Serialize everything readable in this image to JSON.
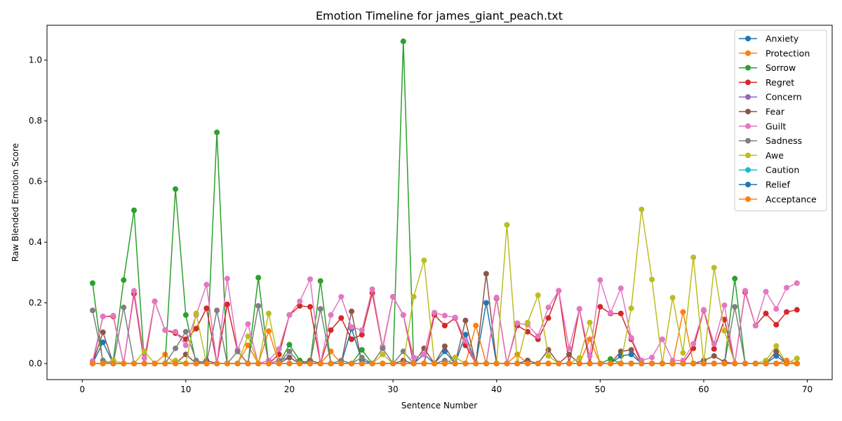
{
  "chart_data": {
    "type": "line",
    "title": "Emotion Timeline for james_giant_peach.txt",
    "xlabel": "Sentence Number",
    "ylabel": "Raw Blended Emotion Score",
    "xlim": [
      -3.4,
      72.4
    ],
    "ylim": [
      -0.053,
      1.115
    ],
    "xticks": [
      0,
      10,
      20,
      30,
      40,
      50,
      60,
      70
    ],
    "yticks": [
      0.0,
      0.2,
      0.4,
      0.6,
      0.8,
      1.0
    ],
    "ytick_labels": [
      "0.0",
      "0.2",
      "0.4",
      "0.6",
      "0.8",
      "1.0"
    ],
    "grid": false,
    "legend_position": "top-right",
    "x": [
      1,
      2,
      3,
      4,
      5,
      6,
      7,
      8,
      9,
      10,
      11,
      12,
      13,
      14,
      15,
      16,
      17,
      18,
      19,
      20,
      21,
      22,
      23,
      24,
      25,
      26,
      27,
      28,
      29,
      30,
      31,
      32,
      33,
      34,
      35,
      36,
      37,
      38,
      39,
      40,
      41,
      42,
      43,
      44,
      45,
      46,
      47,
      48,
      49,
      50,
      51,
      52,
      53,
      54,
      55,
      56,
      57,
      58,
      59,
      60,
      61,
      62,
      63,
      64,
      65,
      66,
      67,
      68,
      69
    ],
    "series": [
      {
        "name": "Anxiety",
        "color": "#1f77b4",
        "values": [
          0,
          0.07,
          0,
          0,
          0,
          0,
          0,
          0,
          0,
          0,
          0,
          0,
          0,
          0,
          0,
          0,
          0,
          0,
          0,
          0,
          0,
          0,
          0,
          0,
          0,
          0.115,
          0.01,
          0,
          0,
          0,
          0,
          0,
          0.03,
          0,
          0.04,
          0,
          0.095,
          0,
          0.2,
          0,
          0,
          0,
          0,
          0,
          0,
          0,
          0,
          0,
          0,
          0,
          0,
          0.025,
          0.03,
          0,
          0,
          0,
          0,
          0,
          0,
          0,
          0,
          0,
          0,
          0,
          0,
          0,
          0.025,
          0,
          0
        ]
      },
      {
        "name": "Protection",
        "color": "#ff7f0e",
        "values": [
          0,
          0,
          0,
          0,
          0,
          0,
          0,
          0.03,
          0,
          0,
          0,
          0,
          0,
          0,
          0,
          0.06,
          0,
          0.107,
          0,
          0,
          0,
          0,
          0,
          0.04,
          0,
          0,
          0,
          0,
          0,
          0,
          0,
          0,
          0,
          0,
          0,
          0,
          0,
          0.125,
          0,
          0,
          0,
          0.03,
          0,
          0,
          0,
          0,
          0,
          0,
          0.08,
          0,
          0,
          0,
          0,
          0,
          0,
          0,
          0,
          0.17,
          0,
          0,
          0,
          0,
          0,
          0,
          0,
          0,
          0,
          0.01,
          0
        ]
      },
      {
        "name": "Sorrow",
        "color": "#2ca02c",
        "values": [
          0.265,
          0,
          0.01,
          0.275,
          0.505,
          0,
          0,
          0,
          0.575,
          0.16,
          0,
          0,
          0.762,
          0,
          0,
          0,
          0.283,
          0,
          0,
          0.062,
          0.01,
          0,
          0.272,
          0,
          0,
          0,
          0.045,
          0,
          0,
          0,
          1.062,
          0,
          0,
          0,
          0,
          0,
          0,
          0,
          0,
          0,
          0,
          0,
          0,
          0,
          0,
          0,
          0,
          0,
          0,
          0,
          0.015,
          0,
          0,
          0,
          0,
          0,
          0,
          0,
          0,
          0,
          0,
          0,
          0.28,
          0,
          0,
          0,
          0,
          0,
          0
        ]
      },
      {
        "name": "Regret",
        "color": "#d62728",
        "values": [
          0,
          0.155,
          0.155,
          0,
          0.23,
          0,
          0.205,
          0.11,
          0.1,
          0.08,
          0.115,
          0.182,
          0,
          0.195,
          0.04,
          0,
          0,
          0,
          0.03,
          0.16,
          0.19,
          0.187,
          0,
          0.11,
          0.15,
          0.08,
          0.095,
          0.232,
          0.05,
          0.22,
          0.16,
          0,
          0,
          0.16,
          0.125,
          0.15,
          0.06,
          0,
          0,
          0.215,
          0,
          0.125,
          0.105,
          0.08,
          0.15,
          0.24,
          0,
          0.18,
          0,
          0.187,
          0.165,
          0.165,
          0.08,
          0,
          0,
          0,
          0,
          0,
          0.05,
          0.175,
          0.048,
          0.145,
          0,
          0.235,
          0.125,
          0.165,
          0.128,
          0.17,
          0.177
        ]
      },
      {
        "name": "Concern",
        "color": "#9467bd",
        "values": [
          0,
          0,
          0,
          0,
          0,
          0,
          0,
          0,
          0,
          0,
          0,
          0,
          0,
          0,
          0,
          0,
          0,
          0,
          0.01,
          0.02,
          0,
          0,
          0,
          0,
          0,
          0,
          0,
          0,
          0,
          0,
          0,
          0,
          0,
          0,
          0,
          0,
          0,
          0,
          0,
          0,
          0,
          0,
          0,
          0,
          0,
          0,
          0,
          0,
          0,
          0,
          0,
          0,
          0,
          0,
          0,
          0,
          0,
          0,
          0,
          0,
          0,
          0,
          0,
          0,
          0,
          0,
          0,
          0,
          0
        ]
      },
      {
        "name": "Fear",
        "color": "#8c564b",
        "values": [
          0,
          0.103,
          0,
          0,
          0,
          0,
          0,
          0,
          0,
          0.03,
          0,
          0.01,
          0,
          0,
          0,
          0,
          0,
          0,
          0,
          0.02,
          0,
          0.01,
          0,
          0,
          0,
          0.172,
          0,
          0,
          0,
          0,
          0.01,
          0,
          0.05,
          0,
          0.057,
          0,
          0.142,
          0,
          0.296,
          0,
          0,
          0,
          0.01,
          0,
          0.045,
          0,
          0.03,
          0,
          0,
          0,
          0,
          0.04,
          0.045,
          0,
          0,
          0,
          0,
          0,
          0,
          0.01,
          0.025,
          0.005,
          0,
          0,
          0,
          0,
          0.04,
          0,
          0
        ]
      },
      {
        "name": "Guilt",
        "color": "#e377c2",
        "values": [
          0.008,
          0.155,
          0.158,
          0,
          0.24,
          0.018,
          0.205,
          0.11,
          0.105,
          0.06,
          0.16,
          0.26,
          0,
          0.28,
          0.045,
          0.13,
          0,
          0.01,
          0.048,
          0.16,
          0.205,
          0.278,
          0,
          0.16,
          0.22,
          0.12,
          0.11,
          0.245,
          0.055,
          0.22,
          0.16,
          0.02,
          0.03,
          0.168,
          0.158,
          0.152,
          0.075,
          0,
          0,
          0.218,
          0,
          0.133,
          0.128,
          0.09,
          0.185,
          0.24,
          0.05,
          0.18,
          0.025,
          0.275,
          0.167,
          0.248,
          0.085,
          0.01,
          0.02,
          0.08,
          0.01,
          0.01,
          0.065,
          0.177,
          0.065,
          0.192,
          0,
          0.24,
          0.125,
          0.237,
          0.18,
          0.25,
          0.265
        ]
      },
      {
        "name": "Sadness",
        "color": "#7f7f7f",
        "values": [
          0.175,
          0.01,
          0,
          0.185,
          0,
          0,
          0,
          0,
          0.05,
          0.105,
          0.01,
          0,
          0.175,
          0,
          0.04,
          0,
          0.19,
          0,
          0,
          0.04,
          0,
          0,
          0.18,
          0,
          0.01,
          0,
          0.02,
          0,
          0.05,
          0,
          0.04,
          0,
          0,
          0,
          0.01,
          0,
          0,
          0,
          0,
          0,
          0,
          0,
          0,
          0,
          0,
          0,
          0,
          0,
          0,
          0,
          0,
          0,
          0,
          0,
          0,
          0,
          0,
          0,
          0,
          0,
          0,
          0,
          0.187,
          0,
          0,
          0,
          0,
          0,
          0
        ]
      },
      {
        "name": "Awe",
        "color": "#bcbd22",
        "values": [
          0,
          0,
          0.01,
          0,
          0,
          0.04,
          0,
          0,
          0.01,
          0,
          0.165,
          0,
          0,
          0,
          0,
          0.09,
          0,
          0.165,
          0,
          0,
          0,
          0,
          0,
          0,
          0,
          0,
          0,
          0,
          0.03,
          0,
          0,
          0.22,
          0.34,
          0,
          0,
          0.02,
          0,
          0,
          0,
          0,
          0.457,
          0,
          0.135,
          0.225,
          0.025,
          0,
          0,
          0.018,
          0.135,
          0,
          0,
          0,
          0.182,
          0.508,
          0.277,
          0,
          0.217,
          0.035,
          0.35,
          0,
          0.316,
          0.108,
          0,
          0,
          0,
          0.01,
          0.058,
          0,
          0.017
        ]
      },
      {
        "name": "Caution",
        "color": "#17becf",
        "values": [
          0,
          0,
          0,
          0,
          0,
          0,
          0,
          0,
          0,
          0,
          0,
          0,
          0,
          0,
          0,
          0,
          0,
          0,
          0,
          0,
          0,
          0,
          0,
          0,
          0,
          0,
          0,
          0,
          0,
          0,
          0,
          0,
          0,
          0,
          0,
          0,
          0,
          0,
          0,
          0,
          0,
          0,
          0,
          0,
          0,
          0,
          0,
          0,
          0,
          0,
          0,
          0,
          0,
          0,
          0,
          0,
          0,
          0,
          0,
          0,
          0,
          0,
          0,
          0,
          0,
          0,
          0,
          0,
          0
        ]
      },
      {
        "name": "Relief",
        "color": "#1f77b4",
        "values": [
          0,
          0,
          0,
          0,
          0,
          0,
          0,
          0,
          0,
          0,
          0,
          0,
          0,
          0,
          0,
          0,
          0,
          0,
          0,
          0,
          0,
          0,
          0,
          0,
          0,
          0,
          0,
          0,
          0,
          0,
          0,
          0,
          0,
          0,
          0,
          0,
          0,
          0,
          0,
          0,
          0,
          0,
          0,
          0,
          0,
          0,
          0,
          0,
          0,
          0,
          0,
          0,
          0,
          0,
          0,
          0,
          0,
          0,
          0,
          0,
          0,
          0,
          0,
          0,
          0,
          0,
          0,
          0,
          0
        ]
      },
      {
        "name": "Acceptance",
        "color": "#ff7f0e",
        "values": [
          0,
          0,
          0,
          0,
          0,
          0,
          0,
          0,
          0,
          0,
          0,
          0,
          0,
          0,
          0,
          0,
          0,
          0,
          0,
          0,
          0,
          0,
          0,
          0,
          0,
          0,
          0,
          0,
          0,
          0,
          0,
          0,
          0,
          0,
          0,
          0,
          0,
          0,
          0,
          0,
          0,
          0,
          0,
          0,
          0,
          0,
          0,
          0,
          0,
          0,
          0,
          0,
          0,
          0,
          0,
          0,
          0,
          0,
          0,
          0,
          0,
          0,
          0,
          0,
          0,
          0,
          0,
          0,
          0
        ]
      }
    ]
  }
}
